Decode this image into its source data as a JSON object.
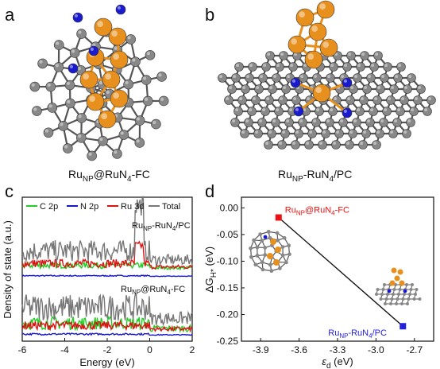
{
  "panels": {
    "a": {
      "letter": "a",
      "caption_main": "Ru",
      "caption_sub": "NP",
      "caption_rest": "@RuN",
      "caption_sub2": "4",
      "caption_end": "-FC"
    },
    "b": {
      "letter": "b",
      "caption_main": "Ru",
      "caption_sub": "NP",
      "caption_rest": "-RuN",
      "caption_sub2": "4",
      "caption_end": "/PC"
    },
    "c": {
      "letter": "c"
    },
    "d": {
      "letter": "d"
    }
  },
  "colors": {
    "ru": "#E8901E",
    "n": "#1A1ACF",
    "c": "#888888",
    "bond": "#555555",
    "c2p": "#22CC22",
    "n2p": "#1515CC",
    "ru3d": "#DD1111",
    "total": "#777777",
    "pt_fc": "#EE1111",
    "pt_pc": "#2222DD"
  },
  "chart_data": [
    {
      "type": "line",
      "title": "",
      "xlabel": "Energy (eV)",
      "ylabel": "Density of state (a.u.)",
      "xlim": [
        -6,
        2
      ],
      "xticks": [
        "-6",
        "-4",
        "-2",
        "0",
        "2"
      ],
      "legend": [
        "C 2p",
        "N 2p",
        "Ru 3d",
        "Total"
      ],
      "legend_placement": "top",
      "annotations": [
        {
          "main": "Ru",
          "sub": "NP",
          "rest": "-RuN",
          "sub2": "4",
          "end": "/PC"
        },
        {
          "main": "Ru",
          "sub": "NP",
          "rest": "@RuN",
          "sub2": "4",
          "end": "-FC"
        }
      ],
      "series_note": "Two stacked DOS spectra (upper: RuNP-RuN4/PC, lower: RuNP@RuN4-FC), each with C 2p, N 2p, Ru 3d and Total curves"
    },
    {
      "type": "scatter",
      "title": "",
      "xlabel": "ε",
      "xlabel_sub": "d",
      "xlabel_unit": " (eV)",
      "ylabel": "ΔG",
      "ylabel_sub": "H*",
      "ylabel_unit": " (eV)",
      "xlim": [
        -4.05,
        -2.55
      ],
      "ylim": [
        -0.25,
        0.02
      ],
      "xticks": [
        -3.9,
        -3.6,
        -3.3,
        -3.0,
        -2.7
      ],
      "yticks": [
        0.0,
        -0.05,
        -0.1,
        -0.15,
        -0.2,
        -0.25
      ],
      "xtick_labels": [
        "-3.9",
        "-3.6",
        "-3.3",
        "-3.0",
        "-2.7"
      ],
      "ytick_labels": [
        "0.00",
        "-0.05",
        "-0.10",
        "-0.15",
        "-0.20",
        "-0.25"
      ],
      "points": [
        {
          "x": -3.76,
          "y": -0.018,
          "label_main": "Ru",
          "label_sub": "NP",
          "label_rest": "@RuN",
          "label_sub2": "4",
          "label_end": "-FC",
          "color": "#EE1111"
        },
        {
          "x": -2.79,
          "y": -0.222,
          "label_main": "Ru",
          "label_sub": "NP",
          "label_rest": "-RuN",
          "label_sub2": "4",
          "label_end": "/PC",
          "color": "#2222DD"
        }
      ]
    }
  ]
}
